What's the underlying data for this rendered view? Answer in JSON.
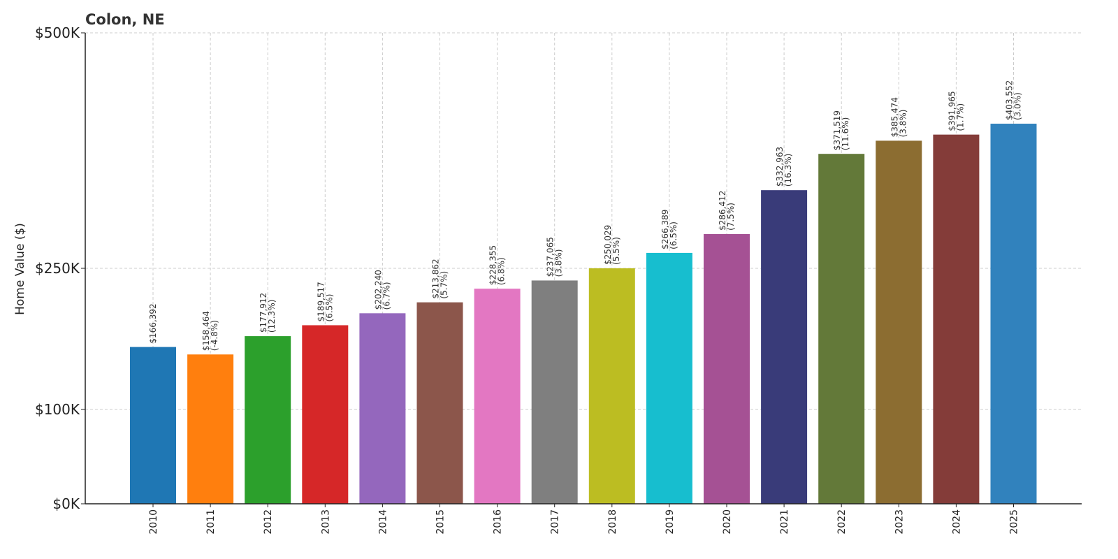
{
  "chart_data": {
    "type": "bar",
    "title": "Colon, NE",
    "xlabel": "",
    "ylabel": "Home Value ($)",
    "ylim": [
      0,
      500000
    ],
    "y_ticks": [
      {
        "value": 0,
        "label": "$0K"
      },
      {
        "value": 100000,
        "label": "$100K"
      },
      {
        "value": 250000,
        "label": "$250K"
      },
      {
        "value": 500000,
        "label": "$500K"
      }
    ],
    "grid": true,
    "categories": [
      "2010",
      "2011",
      "2012",
      "2013",
      "2014",
      "2015",
      "2016",
      "2017",
      "2018",
      "2019",
      "2020",
      "2021",
      "2022",
      "2023",
      "2024",
      "2025"
    ],
    "values": [
      166392,
      158464,
      177912,
      189517,
      202240,
      213862,
      228355,
      237065,
      250029,
      266389,
      286412,
      332963,
      371519,
      385474,
      391965,
      403552
    ],
    "labels": [
      [
        "$166,392"
      ],
      [
        "$158,464",
        "(-4.8%)"
      ],
      [
        "$177,912",
        "(12.3%)"
      ],
      [
        "$189,517",
        "(6.5%)"
      ],
      [
        "$202,240",
        "(6.7%)"
      ],
      [
        "$213,862",
        "(5.7%)"
      ],
      [
        "$228,355",
        "(6.8%)"
      ],
      [
        "$237,065",
        "(3.8%)"
      ],
      [
        "$250,029",
        "(5.5%)"
      ],
      [
        "$266,389",
        "(6.5%)"
      ],
      [
        "$286,412",
        "(7.5%)"
      ],
      [
        "$332,963",
        "(16.3%)"
      ],
      [
        "$371,519",
        "(11.6%)"
      ],
      [
        "$385,474",
        "(3.8%)"
      ],
      [
        "$391,965",
        "(1.7%)"
      ],
      [
        "$403,552",
        "(3.0%)"
      ]
    ],
    "colors": [
      "#1f77b4",
      "#ff7f0e",
      "#2ca02c",
      "#d62728",
      "#9467bd",
      "#8c564b",
      "#e377c2",
      "#7f7f7f",
      "#bcbd22",
      "#17becf",
      "#a55194",
      "#393b79",
      "#637939",
      "#8c6d31",
      "#843c39",
      "#3182bd"
    ]
  }
}
